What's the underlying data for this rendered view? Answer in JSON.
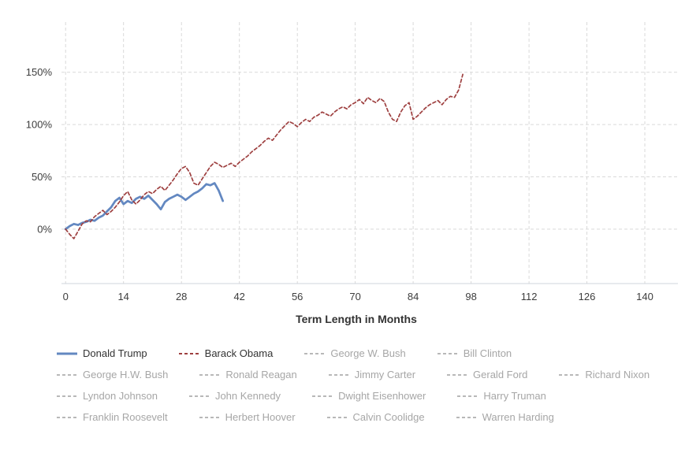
{
  "chart_data": {
    "type": "line",
    "title": "",
    "xlabel": "Term Length in Months",
    "ylabel": "",
    "xlim": [
      -1,
      148
    ],
    "ylim": [
      -52,
      198
    ],
    "grid": true,
    "grid_color": "#d9d9d9",
    "axis_line_color": "#cfd4dc",
    "legend_position": "bottom",
    "x_ticks": [
      0,
      14,
      28,
      42,
      56,
      70,
      84,
      98,
      112,
      126,
      140
    ],
    "y_tick_values": [
      0,
      50,
      100,
      150
    ],
    "y_tick_labels": [
      "0%",
      "50%",
      "100%",
      "150%"
    ],
    "series": [
      {
        "name": "Donald Trump",
        "color": "#6388c1",
        "dash": "solid",
        "x": [
          0,
          1,
          2,
          3,
          4,
          5,
          6,
          7,
          8,
          9,
          10,
          11,
          12,
          13,
          14,
          15,
          16,
          17,
          18,
          19,
          20,
          21,
          22,
          23,
          24,
          25,
          26,
          27,
          28,
          29,
          30,
          31,
          32,
          33,
          34,
          35,
          36,
          37,
          38
        ],
        "values": [
          0,
          3,
          5,
          4,
          6,
          7,
          9,
          8,
          11,
          13,
          17,
          21,
          27,
          30,
          24,
          27,
          25,
          29,
          31,
          29,
          32,
          28,
          24,
          19,
          26,
          29,
          31,
          33,
          31,
          28,
          31,
          34,
          36,
          39,
          43,
          42,
          44,
          37,
          27
        ]
      },
      {
        "name": "Barack Obama",
        "color": "#9e4040",
        "dash": "dash",
        "x": [
          0,
          1,
          2,
          3,
          4,
          5,
          6,
          7,
          8,
          9,
          10,
          11,
          12,
          13,
          14,
          15,
          16,
          17,
          18,
          19,
          20,
          21,
          22,
          23,
          24,
          25,
          26,
          27,
          28,
          29,
          30,
          31,
          32,
          33,
          34,
          35,
          36,
          37,
          38,
          39,
          40,
          41,
          42,
          43,
          44,
          45,
          46,
          47,
          48,
          49,
          50,
          51,
          52,
          53,
          54,
          55,
          56,
          57,
          58,
          59,
          60,
          61,
          62,
          63,
          64,
          65,
          66,
          67,
          68,
          69,
          70,
          71,
          72,
          73,
          74,
          75,
          76,
          77,
          78,
          79,
          80,
          81,
          82,
          83,
          84,
          85,
          86,
          87,
          88,
          89,
          90,
          91,
          92,
          93,
          94,
          95,
          96
        ],
        "values": [
          0,
          -5,
          -9,
          -2,
          5,
          8,
          7,
          12,
          15,
          18,
          14,
          17,
          21,
          26,
          32,
          36,
          28,
          24,
          28,
          33,
          36,
          34,
          38,
          41,
          37,
          42,
          47,
          53,
          58,
          60,
          54,
          44,
          42,
          48,
          54,
          60,
          64,
          62,
          59,
          61,
          63,
          60,
          64,
          67,
          70,
          74,
          77,
          80,
          84,
          87,
          85,
          90,
          95,
          99,
          103,
          101,
          98,
          102,
          105,
          103,
          107,
          109,
          112,
          110,
          108,
          112,
          115,
          117,
          115,
          119,
          121,
          124,
          120,
          126,
          123,
          121,
          125,
          122,
          112,
          105,
          103,
          112,
          118,
          121,
          105,
          108,
          112,
          116,
          119,
          121,
          123,
          119,
          124,
          127,
          126,
          133,
          148
        ]
      }
    ]
  },
  "legend": {
    "active_text_color": "#333333",
    "inactive_text_color": "#a6a6a6",
    "inactive_marker_color": "#b8b8b8",
    "rows": [
      [
        {
          "label": "Donald Trump",
          "state": "active",
          "color": "#6388c1",
          "dash": "solid"
        },
        {
          "label": "Barack Obama",
          "state": "active",
          "color": "#9e4040",
          "dash": "dash"
        },
        {
          "label": "George W. Bush",
          "state": "inactive"
        },
        {
          "label": "Bill Clinton",
          "state": "inactive"
        }
      ],
      [
        {
          "label": "George H.W. Bush",
          "state": "inactive"
        },
        {
          "label": "Ronald Reagan",
          "state": "inactive"
        },
        {
          "label": "Jimmy Carter",
          "state": "inactive"
        },
        {
          "label": "Gerald Ford",
          "state": "inactive"
        },
        {
          "label": "Richard Nixon",
          "state": "inactive"
        }
      ],
      [
        {
          "label": "Lyndon Johnson",
          "state": "inactive"
        },
        {
          "label": "John Kennedy",
          "state": "inactive"
        },
        {
          "label": "Dwight Eisenhower",
          "state": "inactive"
        },
        {
          "label": "Harry Truman",
          "state": "inactive"
        }
      ],
      [
        {
          "label": "Franklin Roosevelt",
          "state": "inactive"
        },
        {
          "label": "Herbert Hoover",
          "state": "inactive"
        },
        {
          "label": "Calvin Coolidge",
          "state": "inactive"
        },
        {
          "label": "Warren Harding",
          "state": "inactive"
        }
      ]
    ]
  }
}
